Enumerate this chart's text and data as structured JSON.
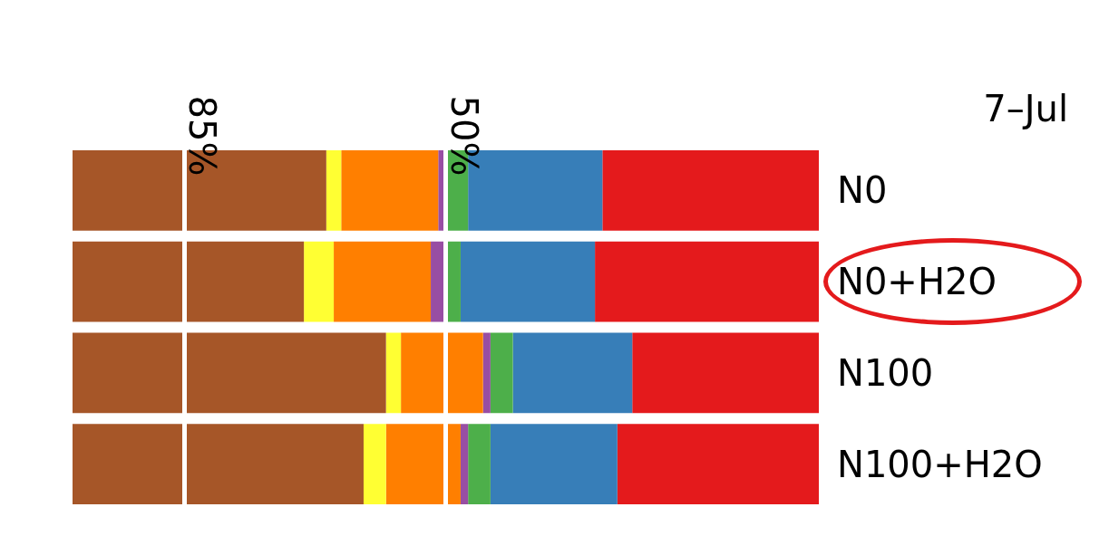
{
  "chart_data": {
    "type": "bar",
    "title": "7–Jul",
    "orientation": "horizontal",
    "stacked": true,
    "categories": [
      "N0",
      "N0+H2O",
      "N100",
      "N100+H2O"
    ],
    "series": [
      {
        "color": "#e41a1c",
        "values": [
          29,
          30,
          25,
          27
        ]
      },
      {
        "color": "#377eb8",
        "values": [
          18,
          18,
          16,
          17
        ]
      },
      {
        "color": "#4daf4a",
        "values": [
          3,
          2,
          3,
          3
        ]
      },
      {
        "color": "#984ea3",
        "values": [
          1,
          2,
          1,
          1
        ]
      },
      {
        "color": "#ff7f00",
        "values": [
          13,
          13,
          11,
          10
        ]
      },
      {
        "color": "#ffff33",
        "values": [
          2,
          4,
          2,
          3
        ]
      },
      {
        "color": "#a65628",
        "values": [
          34,
          31,
          42,
          39
        ]
      }
    ],
    "xlim": [
      100,
      0
    ],
    "tick_labels": "y",
    "grid": false,
    "ref_lines": [
      {
        "axis": "x",
        "value": 85,
        "label": "85%",
        "color": "#ffffff"
      },
      {
        "axis": "x",
        "value": 50,
        "label": "50%",
        "color": "#ffffff"
      }
    ]
  }
}
